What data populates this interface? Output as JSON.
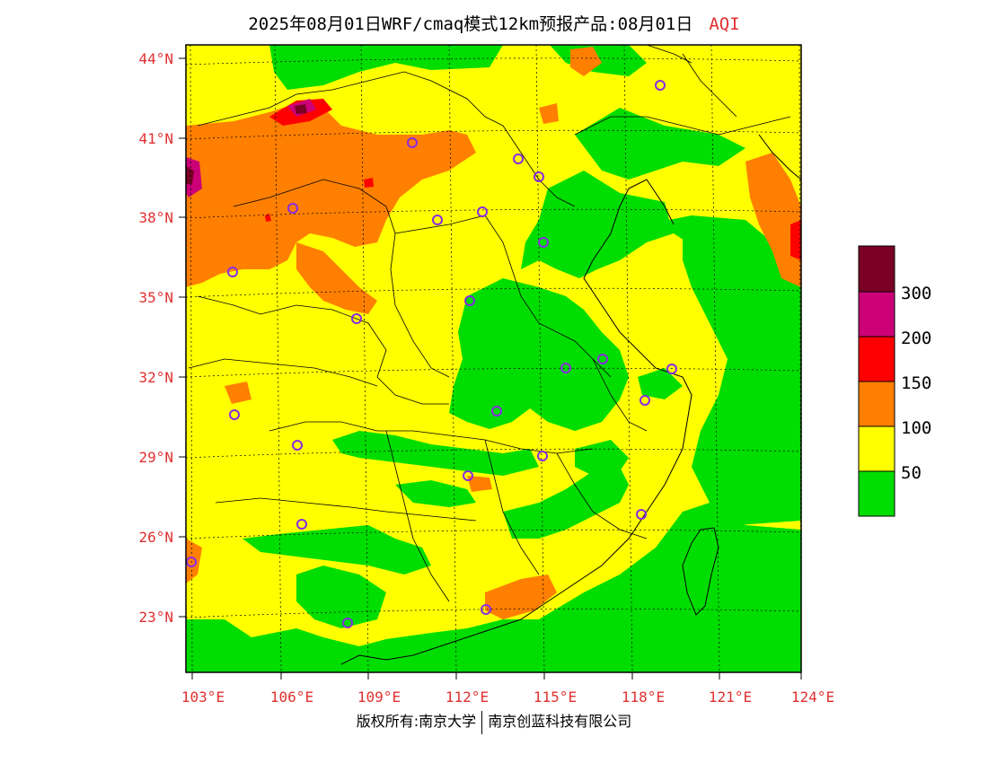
{
  "title": {
    "main": "2025年08月01日WRF/cmaq模式12km预报产品:08月01日",
    "variable": "AQI"
  },
  "axes": {
    "lat_labels": [
      "44°N",
      "41°N",
      "38°N",
      "35°N",
      "32°N",
      "29°N",
      "26°N",
      "23°N"
    ],
    "lon_labels": [
      "103°E",
      "106°E",
      "109°E",
      "112°E",
      "115°E",
      "118°E",
      "121°E",
      "124°E"
    ]
  },
  "legend": {
    "colors": [
      "#00dd00",
      "#ffff00",
      "#ff7f00",
      "#ff0000",
      "#cc0077",
      "#7a0025"
    ],
    "labels": [
      "50",
      "100",
      "150",
      "200",
      "300"
    ]
  },
  "footer": {
    "left": "版权所有:南京大学",
    "right": "南京创蓝科技有限公司"
  },
  "map": {
    "colors": {
      "good": "#00dd00",
      "moderate": "#ffff00",
      "usg": "#ff7f00",
      "unhealthy": "#ff0000",
      "very": "#cc0077",
      "hazard": "#7a0025"
    },
    "station_color": "#8a2be2"
  }
}
